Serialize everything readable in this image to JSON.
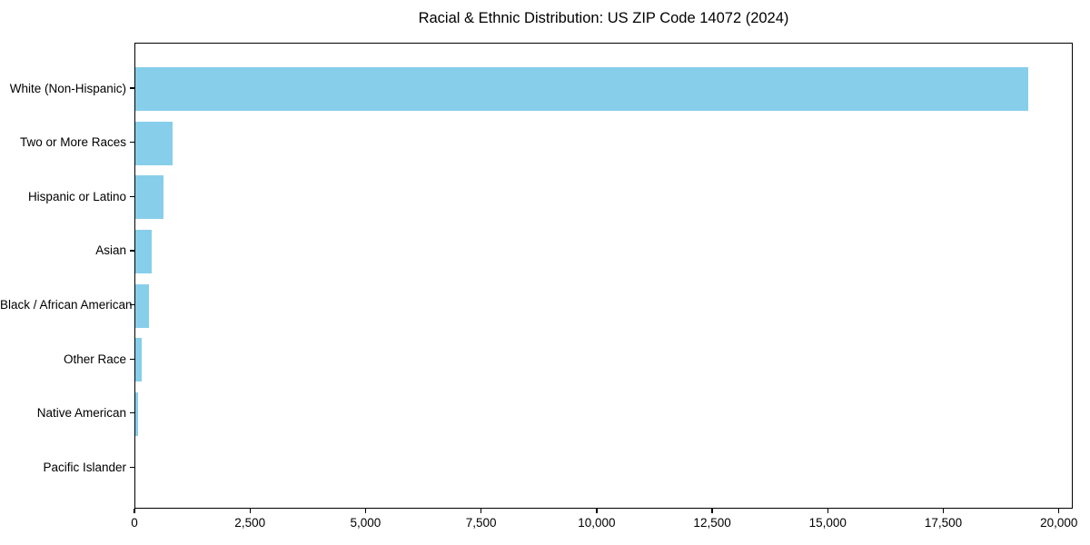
{
  "chart_data": {
    "type": "bar",
    "orientation": "horizontal",
    "title": "Racial & Ethnic Distribution: US ZIP Code 14072 (2024)",
    "xlabel": "",
    "ylabel": "",
    "categories": [
      "White (Non-Hispanic)",
      "Two or More Races",
      "Hispanic or Latino",
      "Asian",
      "Black / African American",
      "Other Race",
      "Native American",
      "Pacific Islander"
    ],
    "values": [
      19325,
      810,
      610,
      350,
      300,
      140,
      60,
      0
    ],
    "xlim": [
      0,
      20300
    ],
    "x_ticks": [
      0,
      2500,
      5000,
      7500,
      10000,
      12500,
      15000,
      17500,
      20000
    ],
    "x_tick_labels": [
      "0",
      "2,500",
      "5,000",
      "7,500",
      "10,000",
      "12,500",
      "15,000",
      "17,500",
      "20,000"
    ],
    "bar_color": "#87CEEB",
    "axis_color": "#000000",
    "grid": false,
    "legend": false
  }
}
